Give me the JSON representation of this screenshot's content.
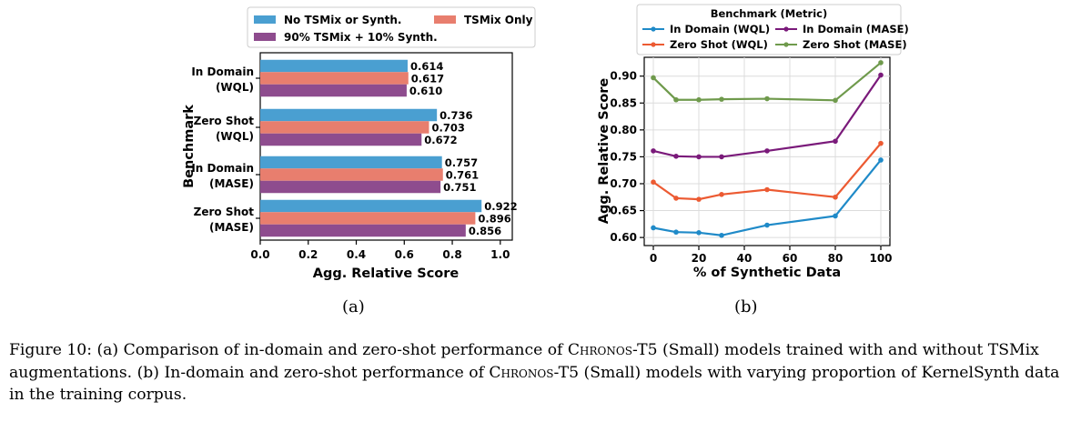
{
  "chart_data": [
    {
      "type": "bar",
      "orientation": "horizontal",
      "xlabel": "Agg. Relative Score",
      "ylabel": "Benchmark",
      "xlim": [
        0.0,
        1.05
      ],
      "x_ticks": [
        "0.0",
        "0.2",
        "0.4",
        "0.6",
        "0.8",
        "1.0"
      ],
      "categories": [
        "In Domain\n(WQL)",
        "Zero Shot\n(WQL)",
        "In Domain\n(MASE)",
        "Zero Shot\n(MASE)"
      ],
      "legend_position": "top",
      "series": [
        {
          "name": "No TSMix or Synth.",
          "color": "#4a9fd1",
          "values": [
            0.614,
            0.736,
            0.757,
            0.922
          ],
          "labels": [
            "0.614",
            "0.736",
            "0.757",
            "0.922"
          ]
        },
        {
          "name": "TSMix Only",
          "color": "#e87e6e",
          "values": [
            0.617,
            0.703,
            0.761,
            0.896
          ],
          "labels": [
            "0.617",
            "0.703",
            "0.761",
            "0.896"
          ]
        },
        {
          "name": "90% TSMix + 10% Synth.",
          "color": "#8e4c8e",
          "values": [
            0.61,
            0.672,
            0.751,
            0.856
          ],
          "labels": [
            "0.610",
            "0.672",
            "0.751",
            "0.856"
          ]
        }
      ],
      "grid": false
    },
    {
      "type": "line",
      "xlabel": "% of Synthetic Data",
      "ylabel": "Agg. Relative Score",
      "xlim": [
        -4,
        104
      ],
      "ylim": [
        0.585,
        0.935
      ],
      "x_ticks": [
        "0",
        "20",
        "40",
        "60",
        "80",
        "100"
      ],
      "y_ticks": [
        "0.60",
        "0.65",
        "0.70",
        "0.75",
        "0.80",
        "0.85",
        "0.90"
      ],
      "x": [
        0,
        10,
        20,
        30,
        50,
        80,
        100
      ],
      "legend_title": "Benchmark (Metric)",
      "legend_position": "top",
      "grid": true,
      "series": [
        {
          "name": "In Domain (WQL)",
          "color": "#1f8ac8",
          "values": [
            0.618,
            0.61,
            0.609,
            0.604,
            0.623,
            0.64,
            0.744
          ]
        },
        {
          "name": "In Domain (MASE)",
          "color": "#7a1a7a",
          "values": [
            0.761,
            0.751,
            0.75,
            0.75,
            0.761,
            0.779,
            0.902
          ]
        },
        {
          "name": "Zero Shot (WQL)",
          "color": "#ec5a32",
          "values": [
            0.703,
            0.673,
            0.671,
            0.68,
            0.689,
            0.675,
            0.775
          ]
        },
        {
          "name": "Zero Shot (MASE)",
          "color": "#6f9a4c",
          "values": [
            0.897,
            0.856,
            0.856,
            0.857,
            0.858,
            0.855,
            0.925
          ]
        }
      ]
    }
  ],
  "panel_labels": {
    "a": "(a)",
    "b": "(b)"
  },
  "caption": {
    "prefix": "Figure 10: (a) Comparison of in-domain and zero-shot performance of ",
    "model_sc": "Chronos",
    "model_suffix": "-T5 (Small) models trained with and without TSMix augmentations. (b) In-domain and zero-shot performance of ",
    "model_sc_2": "Chronos",
    "model_suffix_2": "-T5 (Small) models with varying proportion of KernelSynth data in the training corpus."
  }
}
